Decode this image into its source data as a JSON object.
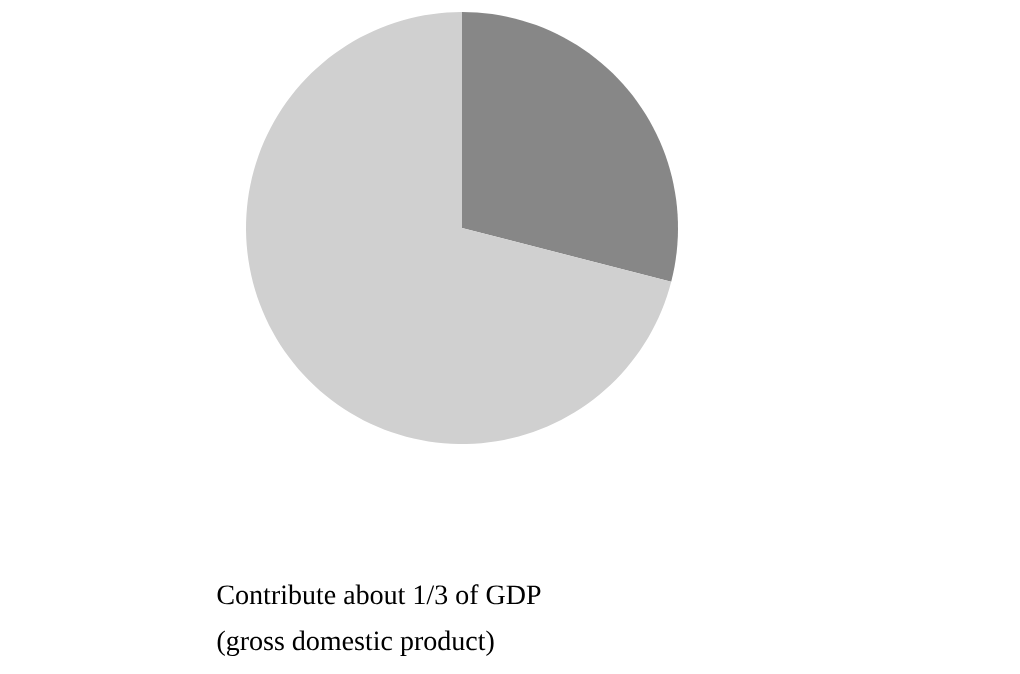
{
  "chart_data": {
    "type": "pie",
    "categories": [
      null,
      null
    ],
    "values": [
      29,
      71
    ],
    "colors": [
      "#878787",
      "#d0d0d0"
    ],
    "annotations": [
      "Contribute about 1/3 of GDP",
      "(gross domestic product)"
    ]
  }
}
